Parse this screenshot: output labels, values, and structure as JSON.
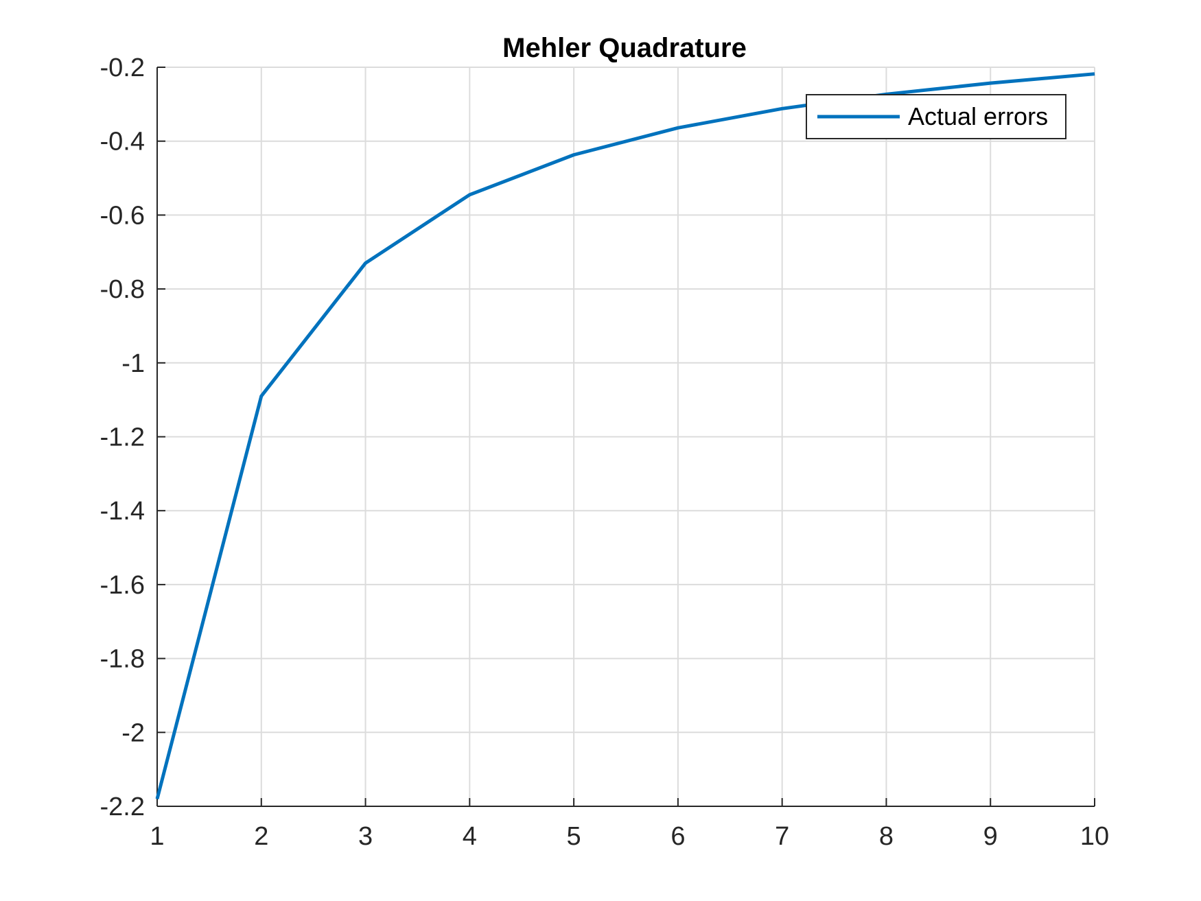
{
  "chart_data": {
    "type": "line",
    "title": "Mehler Quadrature",
    "xlabel": "",
    "ylabel": "",
    "xlim": [
      1,
      10
    ],
    "ylim": [
      -2.2,
      -0.2
    ],
    "x_ticks": [
      1,
      2,
      3,
      4,
      5,
      6,
      7,
      8,
      9,
      10
    ],
    "y_ticks": [
      -0.2,
      -0.4,
      -0.6,
      -0.8,
      -1,
      -1.2,
      -1.4,
      -1.6,
      -1.8,
      -2,
      -2.2
    ],
    "x_tick_labels": [
      "1",
      "2",
      "3",
      "4",
      "5",
      "6",
      "7",
      "8",
      "9",
      "10"
    ],
    "y_tick_labels": [
      "-0.2",
      "-0.4",
      "-0.6",
      "-0.8",
      "-1",
      "-1.2",
      "-1.4",
      "-1.6",
      "-1.8",
      "-2",
      "-2.2"
    ],
    "grid": true,
    "legend_position": "top-right",
    "series": [
      {
        "name": "Actual errors",
        "color": "#0072BD",
        "x": [
          1,
          2,
          3,
          4,
          5,
          6,
          7,
          8,
          9,
          10
        ],
        "y": [
          -2.18,
          -1.09,
          -0.73,
          -0.545,
          -0.437,
          -0.364,
          -0.312,
          -0.273,
          -0.243,
          -0.218
        ]
      }
    ]
  }
}
